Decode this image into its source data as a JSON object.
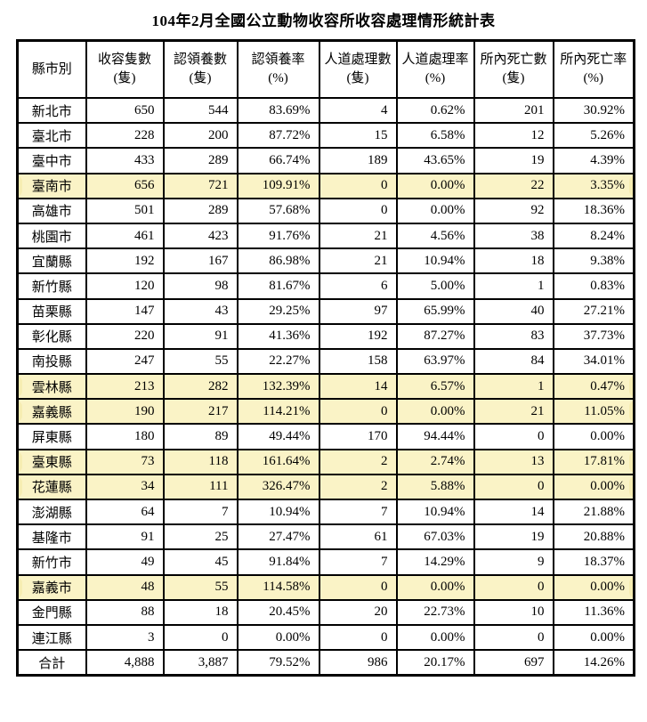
{
  "title": "104年2月全國公立動物收容所收容處理情形統計表",
  "highlight_color": "#faf3c6",
  "table": {
    "columns": [
      {
        "label": "縣市別",
        "sub": ""
      },
      {
        "label": "收容隻數",
        "sub": "(隻)"
      },
      {
        "label": "認領養數",
        "sub": "(隻)"
      },
      {
        "label": "認領養率",
        "sub": "(%)"
      },
      {
        "label": "人道處理數",
        "sub": "(隻)"
      },
      {
        "label": "人道處理率",
        "sub": "(%)"
      },
      {
        "label": "所內死亡數",
        "sub": "(隻)"
      },
      {
        "label": "所內死亡率",
        "sub": "(%)"
      }
    ],
    "rows": [
      {
        "name": "新北市",
        "highlight": false,
        "values": [
          "650",
          "544",
          "83.69%",
          "4",
          "0.62%",
          "201",
          "30.92%"
        ]
      },
      {
        "name": "臺北市",
        "highlight": false,
        "values": [
          "228",
          "200",
          "87.72%",
          "15",
          "6.58%",
          "12",
          "5.26%"
        ]
      },
      {
        "name": "臺中市",
        "highlight": false,
        "values": [
          "433",
          "289",
          "66.74%",
          "189",
          "43.65%",
          "19",
          "4.39%"
        ]
      },
      {
        "name": "臺南市",
        "highlight": true,
        "values": [
          "656",
          "721",
          "109.91%",
          "0",
          "0.00%",
          "22",
          "3.35%"
        ]
      },
      {
        "name": "高雄市",
        "highlight": false,
        "values": [
          "501",
          "289",
          "57.68%",
          "0",
          "0.00%",
          "92",
          "18.36%"
        ]
      },
      {
        "name": "桃園市",
        "highlight": false,
        "values": [
          "461",
          "423",
          "91.76%",
          "21",
          "4.56%",
          "38",
          "8.24%"
        ]
      },
      {
        "name": "宜蘭縣",
        "highlight": false,
        "values": [
          "192",
          "167",
          "86.98%",
          "21",
          "10.94%",
          "18",
          "9.38%"
        ]
      },
      {
        "name": "新竹縣",
        "highlight": false,
        "values": [
          "120",
          "98",
          "81.67%",
          "6",
          "5.00%",
          "1",
          "0.83%"
        ]
      },
      {
        "name": "苗栗縣",
        "highlight": false,
        "values": [
          "147",
          "43",
          "29.25%",
          "97",
          "65.99%",
          "40",
          "27.21%"
        ]
      },
      {
        "name": "彰化縣",
        "highlight": false,
        "values": [
          "220",
          "91",
          "41.36%",
          "192",
          "87.27%",
          "83",
          "37.73%"
        ]
      },
      {
        "name": "南投縣",
        "highlight": false,
        "values": [
          "247",
          "55",
          "22.27%",
          "158",
          "63.97%",
          "84",
          "34.01%"
        ]
      },
      {
        "name": "雲林縣",
        "highlight": true,
        "values": [
          "213",
          "282",
          "132.39%",
          "14",
          "6.57%",
          "1",
          "0.47%"
        ]
      },
      {
        "name": "嘉義縣",
        "highlight": true,
        "values": [
          "190",
          "217",
          "114.21%",
          "0",
          "0.00%",
          "21",
          "11.05%"
        ]
      },
      {
        "name": "屏東縣",
        "highlight": false,
        "values": [
          "180",
          "89",
          "49.44%",
          "170",
          "94.44%",
          "0",
          "0.00%"
        ]
      },
      {
        "name": "臺東縣",
        "highlight": true,
        "values": [
          "73",
          "118",
          "161.64%",
          "2",
          "2.74%",
          "13",
          "17.81%"
        ]
      },
      {
        "name": "花蓮縣",
        "highlight": true,
        "values": [
          "34",
          "111",
          "326.47%",
          "2",
          "5.88%",
          "0",
          "0.00%"
        ]
      },
      {
        "name": "澎湖縣",
        "highlight": false,
        "values": [
          "64",
          "7",
          "10.94%",
          "7",
          "10.94%",
          "14",
          "21.88%"
        ]
      },
      {
        "name": "基隆市",
        "highlight": false,
        "values": [
          "91",
          "25",
          "27.47%",
          "61",
          "67.03%",
          "19",
          "20.88%"
        ]
      },
      {
        "name": "新竹市",
        "highlight": false,
        "values": [
          "49",
          "45",
          "91.84%",
          "7",
          "14.29%",
          "9",
          "18.37%"
        ]
      },
      {
        "name": "嘉義市",
        "highlight": true,
        "values": [
          "48",
          "55",
          "114.58%",
          "0",
          "0.00%",
          "0",
          "0.00%"
        ]
      },
      {
        "name": "金門縣",
        "highlight": false,
        "values": [
          "88",
          "18",
          "20.45%",
          "20",
          "22.73%",
          "10",
          "11.36%"
        ]
      },
      {
        "name": "連江縣",
        "highlight": false,
        "values": [
          "3",
          "0",
          "0.00%",
          "0",
          "0.00%",
          "0",
          "0.00%"
        ]
      },
      {
        "name": "合計",
        "highlight": false,
        "values": [
          "4,888",
          "3,887",
          "79.52%",
          "986",
          "20.17%",
          "697",
          "14.26%"
        ]
      }
    ]
  }
}
